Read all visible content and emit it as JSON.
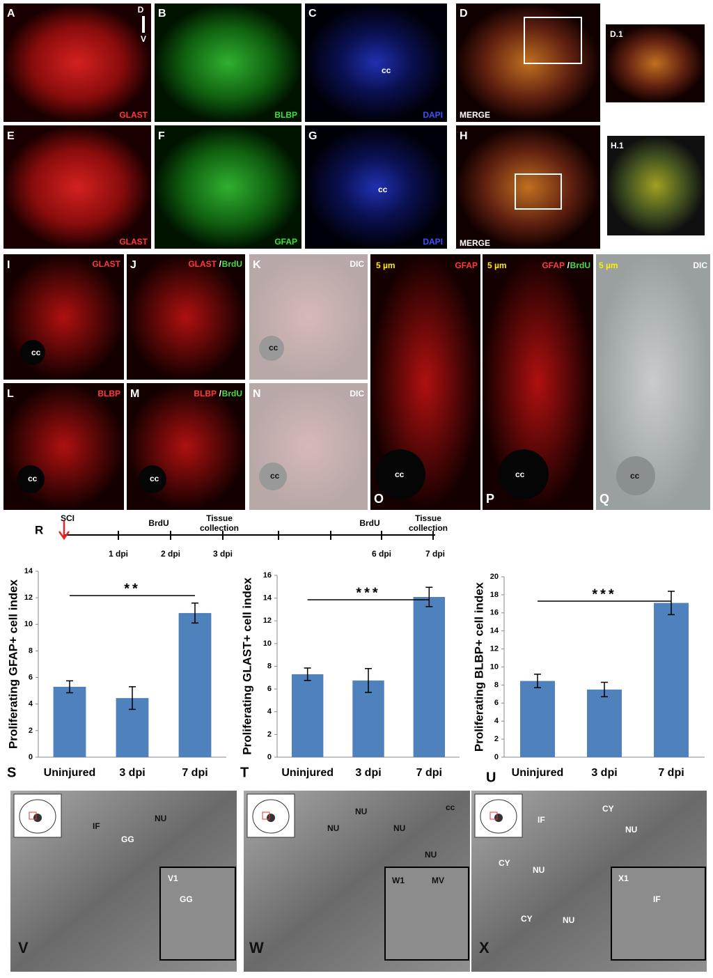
{
  "panels": [
    {
      "letter": "A",
      "labels": [
        "D",
        "V",
        "GLAST"
      ]
    },
    {
      "letter": "B",
      "labels": [
        "BLBP"
      ]
    },
    {
      "letter": "C",
      "labels": [
        "cc",
        "DAPI"
      ]
    },
    {
      "letter": "D",
      "labels": [
        "MERGE"
      ]
    },
    {
      "letter": "D.1",
      "labels": []
    },
    {
      "letter": "E",
      "labels": [
        "GLAST"
      ]
    },
    {
      "letter": "F",
      "labels": [
        "GFAP"
      ]
    },
    {
      "letter": "G",
      "labels": [
        "cc",
        "DAPI"
      ]
    },
    {
      "letter": "H",
      "labels": [
        "MERGE"
      ]
    },
    {
      "letter": "H.1",
      "labels": []
    },
    {
      "letter": "I",
      "labels": [
        "GLAST",
        "cc"
      ]
    },
    {
      "letter": "J",
      "labels": [
        "GLAST",
        "/",
        "BrdU"
      ]
    },
    {
      "letter": "K",
      "labels": [
        "DIC",
        "cc"
      ]
    },
    {
      "letter": "L",
      "labels": [
        "BLBP",
        "cc"
      ]
    },
    {
      "letter": "M",
      "labels": [
        "BLBP",
        "/",
        "BrdU",
        "cc"
      ]
    },
    {
      "letter": "N",
      "labels": [
        "DIC",
        "cc"
      ]
    },
    {
      "letter": "O",
      "labels": [
        "5 µm",
        "GFAP",
        "cc"
      ]
    },
    {
      "letter": "P",
      "labels": [
        "5 µm",
        "GFAP",
        "/",
        "BrdU",
        "cc"
      ]
    },
    {
      "letter": "Q",
      "labels": [
        "5 µm",
        "DIC",
        "cc"
      ]
    },
    {
      "letter": "V",
      "labels": [
        "IF",
        "GG",
        "NU",
        "V1",
        "GG"
      ]
    },
    {
      "letter": "W",
      "labels": [
        "cc",
        "NU",
        "NU",
        "NU",
        "NU",
        "W1",
        "MV"
      ]
    },
    {
      "letter": "X",
      "labels": [
        "IF",
        "CY",
        "NU",
        "CY",
        "NU",
        "CY",
        "NU",
        "X1",
        "IF"
      ]
    }
  ],
  "timeline": {
    "letter": "R",
    "events": [
      [
        "SCI"
      ],
      [
        "BrdU"
      ],
      [
        "Tissue",
        "collection"
      ],
      [
        "BrdU"
      ],
      [
        "Tissue",
        "collection"
      ]
    ],
    "days": [
      "1 dpi",
      "2 dpi",
      "3 dpi",
      "6 dpi",
      "7 dpi"
    ]
  },
  "chart_data": [
    {
      "type": "bar",
      "panel_label": "S",
      "ylabel": "Proliferating GFAP+ cell index",
      "categories": [
        "Uninjured",
        "3 dpi",
        "7 dpi"
      ],
      "values": [
        5.3,
        4.45,
        10.85
      ],
      "errors": [
        0.45,
        0.85,
        0.75
      ],
      "significance": "**",
      "color": "#4f81bd",
      "ylim": [
        0,
        14
      ],
      "yticks": [
        0,
        2,
        4,
        6,
        8,
        10,
        12,
        14
      ]
    },
    {
      "type": "bar",
      "panel_label": "T",
      "ylabel": "Proliferating GLAST+ cell index",
      "categories": [
        "Uninjured",
        "3 dpi",
        "7 dpi"
      ],
      "values": [
        7.3,
        6.75,
        14.1
      ],
      "errors": [
        0.55,
        1.05,
        0.85
      ],
      "significance": "***",
      "color": "#4f81bd",
      "ylim": [
        0,
        16
      ],
      "yticks": [
        0,
        2,
        4,
        6,
        8,
        10,
        12,
        14,
        16
      ]
    },
    {
      "type": "bar",
      "panel_label": "U",
      "ylabel": "Proliferating BLBP+ cell index",
      "categories": [
        "Uninjured",
        "3 dpi",
        "7 dpi"
      ],
      "values": [
        8.45,
        7.5,
        17.1
      ],
      "errors": [
        0.75,
        0.8,
        1.3
      ],
      "significance": "***",
      "color": "#4f81bd",
      "ylim": [
        0,
        20
      ],
      "yticks": [
        0,
        2,
        4,
        6,
        8,
        10,
        12,
        14,
        16,
        18,
        20
      ]
    }
  ]
}
